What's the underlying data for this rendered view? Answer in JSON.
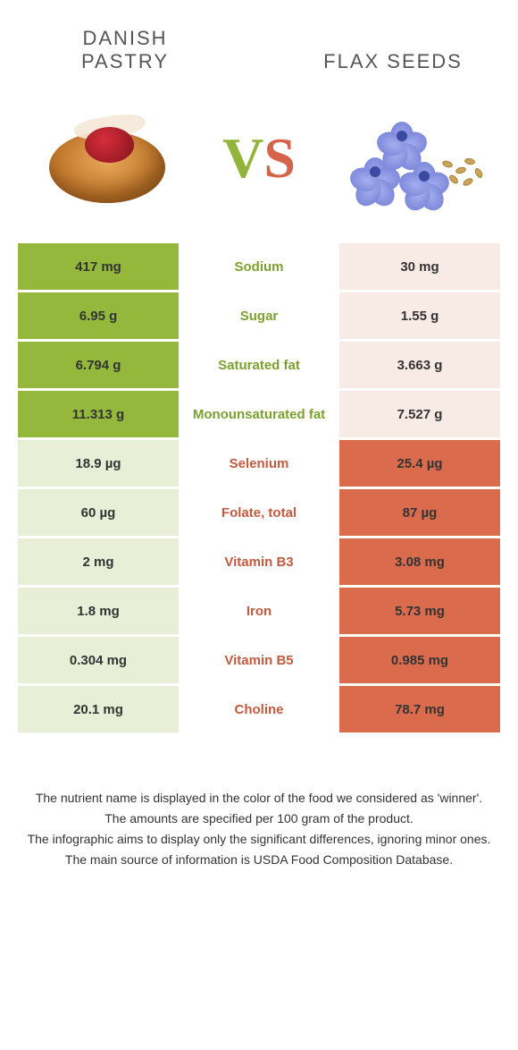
{
  "header": {
    "left_title": "DANISH PASTRY",
    "right_title": "FLAX SEEDS",
    "vs_left": "V",
    "vs_right": "S"
  },
  "colors": {
    "left_accent": "#93b83c",
    "right_accent": "#db6b4d",
    "left_loser_bg": "#e9efd6",
    "right_loser_bg": "#f8ebe6",
    "left_text": "#7ca030",
    "right_text": "#c25a40"
  },
  "rows": [
    {
      "nutrient": "Sodium",
      "left": "417 mg",
      "right": "30 mg",
      "winner": "left"
    },
    {
      "nutrient": "Sugar",
      "left": "6.95 g",
      "right": "1.55 g",
      "winner": "left"
    },
    {
      "nutrient": "Saturated fat",
      "left": "6.794 g",
      "right": "3.663 g",
      "winner": "left"
    },
    {
      "nutrient": "Monounsaturated fat",
      "left": "11.313 g",
      "right": "7.527 g",
      "winner": "left"
    },
    {
      "nutrient": "Selenium",
      "left": "18.9 µg",
      "right": "25.4 µg",
      "winner": "right"
    },
    {
      "nutrient": "Folate, total",
      "left": "60 µg",
      "right": "87 µg",
      "winner": "right"
    },
    {
      "nutrient": "Vitamin B3",
      "left": "2 mg",
      "right": "3.08 mg",
      "winner": "right"
    },
    {
      "nutrient": "Iron",
      "left": "1.8 mg",
      "right": "5.73 mg",
      "winner": "right"
    },
    {
      "nutrient": "Vitamin B5",
      "left": "0.304 mg",
      "right": "0.985 mg",
      "winner": "right"
    },
    {
      "nutrient": "Choline",
      "left": "20.1 mg",
      "right": "78.7 mg",
      "winner": "right"
    }
  ],
  "footer": {
    "line1": "The nutrient name is displayed in the color of the food we considered as 'winner'.",
    "line2": "The amounts are specified per 100 gram of the product.",
    "line3": "The infographic aims to display only the significant differences, ignoring minor ones.",
    "line4": "The main source of information is USDA Food Composition Database."
  }
}
